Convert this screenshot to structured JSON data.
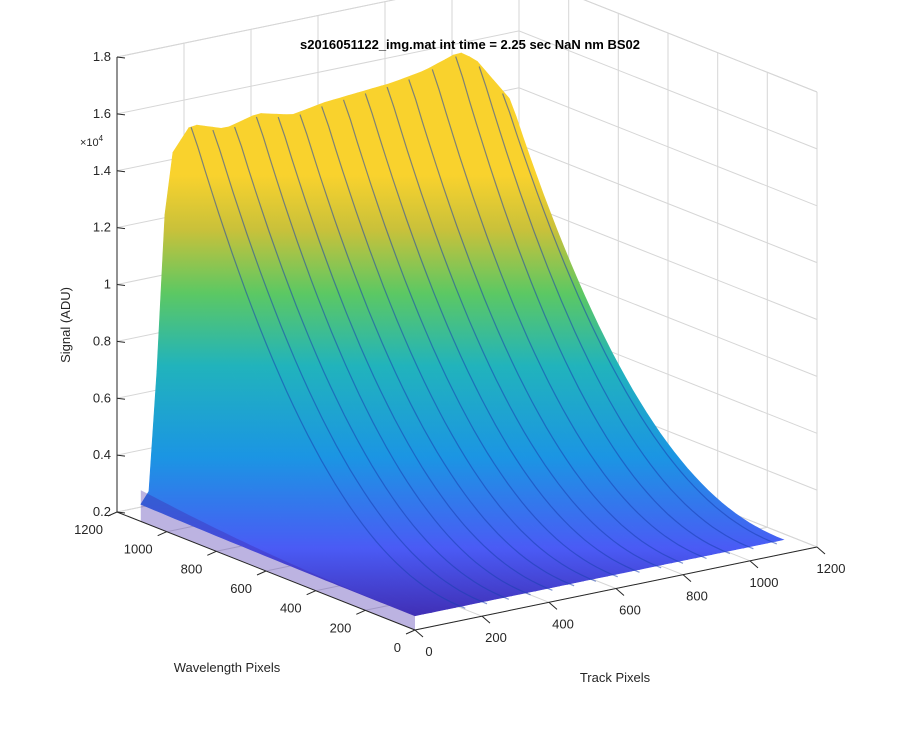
{
  "chart_data": {
    "type": "surface",
    "title": "s2016051122_img.mat int time = 2.25 sec  NaN nm BS02",
    "xlabel": "Track Pixels",
    "ylabel": "Wavelength Pixels",
    "zlabel": "Signal (ADU)",
    "z_multiplier": "×10",
    "z_multiplier_exp": "4",
    "xlim": [
      0,
      1200
    ],
    "ylim": [
      0,
      1200
    ],
    "zlim": [
      0.2,
      1.8
    ],
    "x_ticks": [
      "0",
      "200",
      "400",
      "600",
      "800",
      "1000",
      "1200"
    ],
    "y_ticks": [
      "0",
      "200",
      "400",
      "600",
      "800",
      "1000",
      "1200"
    ],
    "z_ticks": [
      "0.2",
      "0.4",
      "0.6",
      "0.8",
      "1",
      "1.2",
      "1.4",
      "1.6",
      "1.8"
    ],
    "grid": true,
    "colormap": [
      "#3e26a8",
      "#4a5bf5",
      "#1b95e3",
      "#21b3bc",
      "#5cc863",
      "#c9c13a",
      "#f9d22d"
    ],
    "ridge_profile": {
      "x": [
        0,
        30,
        80,
        150,
        250,
        350,
        450,
        550,
        650,
        750,
        850,
        950,
        1000,
        1050,
        1100
      ],
      "z": [
        0.26,
        0.31,
        1.45,
        1.56,
        1.52,
        1.55,
        1.52,
        1.54,
        1.55,
        1.56,
        1.58,
        1.62,
        1.58,
        1.5,
        1.42
      ]
    },
    "valley_ridges_x": [
      150,
      215,
      280,
      345,
      410,
      475,
      540,
      605,
      670,
      735,
      800,
      870,
      940,
      1010,
      1080
    ]
  }
}
